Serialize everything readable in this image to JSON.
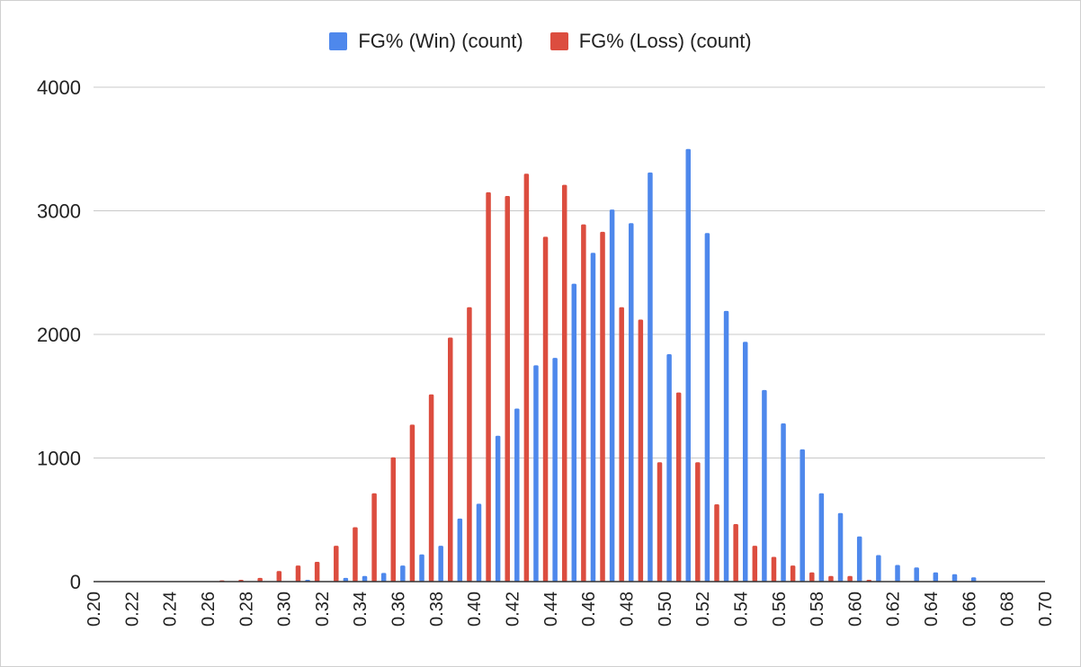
{
  "legend": {
    "win_label": "FG% (Win) (count)",
    "loss_label": "FG% (Loss) (count)"
  },
  "colors": {
    "win": "#4e88ec",
    "loss": "#dc4d3f",
    "grid": "#c8c8c8",
    "axis": "#333333"
  },
  "chart_data": {
    "type": "bar",
    "title": "",
    "xlabel": "",
    "ylabel": "",
    "xlim": [
      0.2,
      0.7
    ],
    "ylim": [
      0,
      4000
    ],
    "y_ticks": [
      "0",
      "1000",
      "2000",
      "3000",
      "4000"
    ],
    "x_ticks": [
      "0.20",
      "0.22",
      "0.24",
      "0.26",
      "0.28",
      "0.30",
      "0.32",
      "0.34",
      "0.36",
      "0.38",
      "0.40",
      "0.42",
      "0.44",
      "0.46",
      "0.48",
      "0.50",
      "0.52",
      "0.54",
      "0.56",
      "0.58",
      "0.60",
      "0.62",
      "0.64",
      "0.66",
      "0.68",
      "0.70"
    ],
    "grid": true,
    "legend_position": "top",
    "bin_width": 0.01,
    "series": [
      {
        "name": "FG% (Win) (count)",
        "x": [
          0.3,
          0.31,
          0.32,
          0.33,
          0.34,
          0.35,
          0.36,
          0.37,
          0.38,
          0.39,
          0.4,
          0.41,
          0.42,
          0.43,
          0.44,
          0.45,
          0.46,
          0.47,
          0.48,
          0.49,
          0.5,
          0.51,
          0.52,
          0.53,
          0.54,
          0.55,
          0.56,
          0.57,
          0.58,
          0.59,
          0.6,
          0.61,
          0.62,
          0.63,
          0.64,
          0.65,
          0.66
        ],
        "values": [
          0,
          15,
          0,
          30,
          45,
          70,
          130,
          220,
          290,
          510,
          630,
          1180,
          1400,
          1750,
          1810,
          2410,
          2660,
          3010,
          2900,
          3310,
          1840,
          3500,
          2820,
          2190,
          1940,
          1550,
          1280,
          1070,
          715,
          555,
          365,
          215,
          135,
          115,
          75,
          60,
          35
        ]
      },
      {
        "name": "FG% (Loss) (count)",
        "x": [
          0.26,
          0.27,
          0.28,
          0.29,
          0.3,
          0.31,
          0.32,
          0.33,
          0.34,
          0.35,
          0.36,
          0.37,
          0.38,
          0.39,
          0.4,
          0.41,
          0.42,
          0.43,
          0.44,
          0.45,
          0.46,
          0.47,
          0.48,
          0.49,
          0.5,
          0.51,
          0.52,
          0.53,
          0.54,
          0.55,
          0.56,
          0.57,
          0.58,
          0.59,
          0.6
        ],
        "values": [
          10,
          15,
          30,
          85,
          130,
          160,
          290,
          440,
          715,
          1005,
          1270,
          1515,
          1975,
          2220,
          3150,
          3120,
          3300,
          2790,
          3210,
          2890,
          2830,
          2220,
          2120,
          965,
          1530,
          965,
          625,
          465,
          290,
          200,
          130,
          75,
          45,
          45,
          15
        ]
      }
    ]
  }
}
